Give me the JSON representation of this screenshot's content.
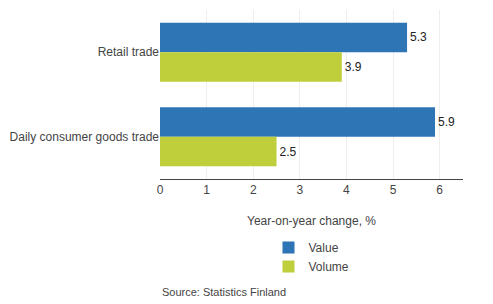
{
  "chart_data": {
    "type": "bar",
    "orientation": "horizontal",
    "categories": [
      "Daily consumer goods trade",
      "Retail trade"
    ],
    "series": [
      {
        "name": "Value",
        "color": "#2E75B6",
        "values": [
          5.9,
          5.3
        ]
      },
      {
        "name": "Volume",
        "color": "#BFCE3B",
        "values": [
          2.5,
          3.9
        ]
      }
    ],
    "xlabel": "Year-on-year change, %",
    "xlim": [
      0,
      6.5
    ],
    "xticks": [
      0,
      1,
      2,
      3,
      4,
      5,
      6
    ],
    "grid": true,
    "data_labels": true,
    "legend": "bottom",
    "annotations": [
      "Source: Statistics Finland"
    ]
  }
}
